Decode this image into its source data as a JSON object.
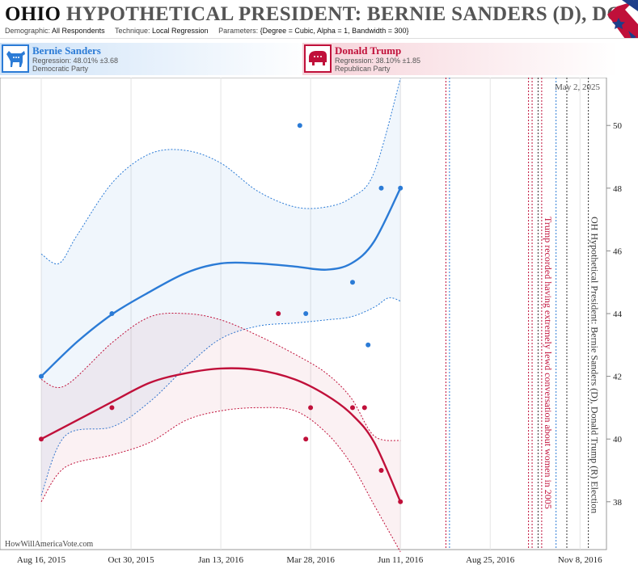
{
  "header": {
    "state": "OHIO",
    "title_rest": "HYPOTHETICAL PRESIDENT: BERNIE SANDERS (D), DONA",
    "demographic_label": "Demographic:",
    "demographic_value": "All Respondents",
    "technique_label": "Technique:",
    "technique_value": "Local Regression",
    "parameters_label": "Parameters:",
    "parameters_value": "{Degree = Cubic, Alpha = 1, Bandwidth = 300}"
  },
  "candidates": {
    "dem": {
      "name": "Bernie Sanders",
      "regression": "Regression: 48.01% ±3.68",
      "party": "Democratic Party",
      "color": "#2b7bd6"
    },
    "rep": {
      "name": "Donald Trump",
      "regression": "Regression: 38.10% ±1.85",
      "party": "Republican Party",
      "color": "#c0103a"
    }
  },
  "watermark": "HowWillAmericaVote.com",
  "date_label": "May 2, 2025",
  "chart_data": {
    "type": "scatter",
    "x_ticks": [
      "Aug 16, 2015",
      "Oct 30, 2015",
      "Jan 13, 2016",
      "Mar 28, 2016",
      "Jun 11, 2016",
      "Aug 25, 2016",
      "Nov 8, 2016"
    ],
    "y_ticks": [
      38,
      40,
      42,
      44,
      46,
      48,
      50
    ],
    "ylim": [
      36.5,
      51.5
    ],
    "xlim": [
      "2015-08-16",
      "2016-11-22"
    ],
    "series": [
      {
        "name": "Bernie Sanders",
        "color": "#2b7bd6",
        "points": [
          [
            "2015-08-16",
            42
          ],
          [
            "2015-10-14",
            44
          ],
          [
            "2016-03-19",
            50
          ],
          [
            "2016-03-24",
            44
          ],
          [
            "2016-05-02",
            45
          ],
          [
            "2016-05-15",
            43
          ],
          [
            "2016-05-26",
            48
          ],
          [
            "2016-06-11",
            48
          ]
        ],
        "trend": [
          [
            "2015-08-16",
            42.0
          ],
          [
            "2015-09-15",
            43.1
          ],
          [
            "2015-10-15",
            44.0
          ],
          [
            "2015-11-15",
            44.7
          ],
          [
            "2015-12-15",
            45.3
          ],
          [
            "2016-01-13",
            45.6
          ],
          [
            "2016-02-13",
            45.6
          ],
          [
            "2016-03-15",
            45.5
          ],
          [
            "2016-04-10",
            45.4
          ],
          [
            "2016-05-01",
            45.6
          ],
          [
            "2016-05-20",
            46.3
          ],
          [
            "2016-06-11",
            48.0
          ]
        ],
        "band_upper": [
          [
            "2015-08-16",
            45.9
          ],
          [
            "2015-08-31",
            45.6
          ],
          [
            "2015-09-15",
            46.5
          ],
          [
            "2015-10-15",
            48.2
          ],
          [
            "2015-11-15",
            49.1
          ],
          [
            "2015-12-15",
            49.2
          ],
          [
            "2016-01-13",
            48.8
          ],
          [
            "2016-02-13",
            47.9
          ],
          [
            "2016-03-15",
            47.4
          ],
          [
            "2016-04-10",
            47.4
          ],
          [
            "2016-05-01",
            47.7
          ],
          [
            "2016-05-20",
            48.5
          ],
          [
            "2016-06-11",
            51.5
          ]
        ],
        "band_lower": [
          [
            "2015-08-16",
            38.2
          ],
          [
            "2015-09-05",
            40.1
          ],
          [
            "2015-10-15",
            40.4
          ],
          [
            "2015-11-15",
            41.2
          ],
          [
            "2015-12-15",
            42.3
          ],
          [
            "2016-01-13",
            43.2
          ],
          [
            "2016-02-13",
            43.6
          ],
          [
            "2016-03-15",
            43.7
          ],
          [
            "2016-04-10",
            43.8
          ],
          [
            "2016-05-01",
            43.9
          ],
          [
            "2016-05-20",
            44.2
          ],
          [
            "2016-06-01",
            44.5
          ],
          [
            "2016-06-11",
            44.4
          ]
        ]
      },
      {
        "name": "Donald Trump",
        "color": "#c0103a",
        "points": [
          [
            "2015-08-16",
            40
          ],
          [
            "2015-10-14",
            41
          ],
          [
            "2016-03-01",
            44
          ],
          [
            "2016-03-24",
            40
          ],
          [
            "2016-03-28",
            41
          ],
          [
            "2016-05-02",
            41
          ],
          [
            "2016-05-12",
            41
          ],
          [
            "2016-05-26",
            39
          ],
          [
            "2016-06-11",
            38
          ]
        ],
        "trend": [
          [
            "2015-08-16",
            40.0
          ],
          [
            "2015-09-15",
            40.6
          ],
          [
            "2015-10-15",
            41.2
          ],
          [
            "2015-11-15",
            41.8
          ],
          [
            "2015-12-15",
            42.1
          ],
          [
            "2016-01-13",
            42.25
          ],
          [
            "2016-02-13",
            42.2
          ],
          [
            "2016-03-15",
            41.9
          ],
          [
            "2016-04-10",
            41.4
          ],
          [
            "2016-05-01",
            40.8
          ],
          [
            "2016-05-20",
            39.9
          ],
          [
            "2016-06-11",
            38.0
          ]
        ],
        "band_upper": [
          [
            "2015-08-16",
            41.9
          ],
          [
            "2015-09-05",
            41.7
          ],
          [
            "2015-10-15",
            43.1
          ],
          [
            "2015-11-15",
            43.9
          ],
          [
            "2015-12-15",
            44.0
          ],
          [
            "2016-01-13",
            43.8
          ],
          [
            "2016-02-13",
            43.3
          ],
          [
            "2016-03-15",
            42.7
          ],
          [
            "2016-04-10",
            42.1
          ],
          [
            "2016-05-01",
            41.3
          ],
          [
            "2016-05-20",
            40.1
          ],
          [
            "2016-06-11",
            39.95
          ]
        ],
        "band_lower": [
          [
            "2015-08-16",
            38.0
          ],
          [
            "2015-09-05",
            39.1
          ],
          [
            "2015-10-15",
            39.5
          ],
          [
            "2015-11-15",
            39.9
          ],
          [
            "2015-12-15",
            40.6
          ],
          [
            "2016-01-13",
            40.9
          ],
          [
            "2016-02-13",
            41.0
          ],
          [
            "2016-03-15",
            40.9
          ],
          [
            "2016-04-10",
            40.2
          ],
          [
            "2016-05-01",
            39.2
          ],
          [
            "2016-05-20",
            37.9
          ],
          [
            "2016-06-11",
            36.4
          ]
        ]
      }
    ],
    "vertical_markers": [
      {
        "date": "2016-07-19",
        "color": "#c0103a"
      },
      {
        "date": "2016-07-22",
        "color": "#2b7bd6"
      },
      {
        "date": "2016-09-26",
        "color": "#c0103a"
      },
      {
        "date": "2016-09-29",
        "color": "#c0103a"
      },
      {
        "date": "2016-10-04",
        "color": "#333333"
      },
      {
        "date": "2016-10-07",
        "color": "#c0103a",
        "label": "Trump recorded having extremely lewd conversation about women in 2005"
      },
      {
        "date": "2016-10-19",
        "color": "#2b7bd6"
      },
      {
        "date": "2016-10-28",
        "color": "#333333"
      },
      {
        "date": "2016-11-15",
        "color": "#333333",
        "label": "OH Hypothetical President: Bernie Sanders (D), Donald Trump (R) Election"
      }
    ]
  }
}
